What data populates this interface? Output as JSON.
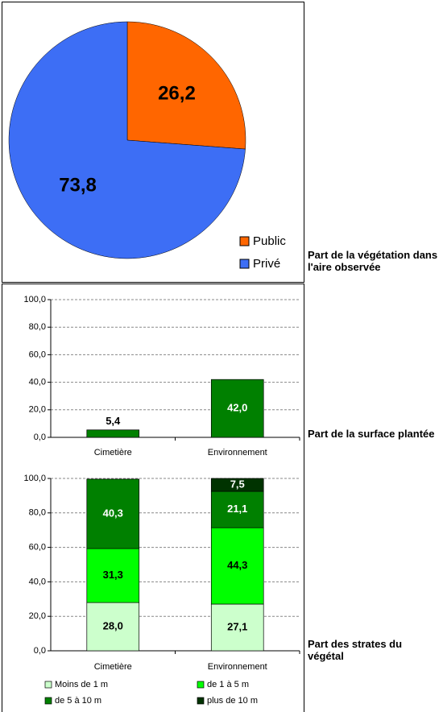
{
  "chart_data": [
    {
      "type": "pie",
      "title": "Part de la végétation dans l'aire observée",
      "categories": [
        "Public",
        "Privé"
      ],
      "values": [
        26.2,
        73.8
      ],
      "value_labels": [
        "26,2",
        "73,8"
      ],
      "colors": [
        "#ff6600",
        "#3d6ef5"
      ],
      "legend": "bottom-right"
    },
    {
      "type": "bar",
      "title": "Part de la surface plantée",
      "categories": [
        "Cimetière",
        "Environnement"
      ],
      "values": [
        5.4,
        42.0
      ],
      "value_labels": [
        "5,4",
        "42,0"
      ],
      "color": "#008000",
      "ylim": [
        0,
        100
      ],
      "yticks": [
        {
          "value": 0,
          "label": "0,0"
        },
        {
          "value": 20,
          "label": "20,0"
        },
        {
          "value": 40,
          "label": "40,0"
        },
        {
          "value": 60,
          "label": "60,0"
        },
        {
          "value": 80,
          "label": "80,0"
        },
        {
          "value": 100,
          "label": "100,0"
        }
      ],
      "grid": true
    },
    {
      "type": "stacked",
      "title": "Part des strates du végétal",
      "categories": [
        "Cimetière",
        "Environnement"
      ],
      "series": [
        {
          "name": "Moins de 1 m",
          "color": "#ccffcc",
          "values": [
            28.0,
            27.1
          ],
          "value_labels": [
            "28,0",
            "27,1"
          ]
        },
        {
          "name": "de 1 à 5 m",
          "color": "#00ff00",
          "values": [
            31.3,
            44.3
          ],
          "value_labels": [
            "31,3",
            "44,3"
          ]
        },
        {
          "name": "de 5 à 10 m",
          "color": "#008000",
          "values": [
            40.3,
            21.1
          ],
          "value_labels": [
            "40,3",
            "21,1"
          ]
        },
        {
          "name": "plus de 10 m",
          "color": "#003300",
          "values": [
            null,
            7.5
          ],
          "value_labels": [
            null,
            "7,5"
          ]
        }
      ],
      "ylim": [
        0,
        100
      ],
      "yticks": [
        {
          "value": 0,
          "label": "0,0"
        },
        {
          "value": 20,
          "label": "20,0"
        },
        {
          "value": 40,
          "label": "40,0"
        },
        {
          "value": 60,
          "label": "60,0"
        },
        {
          "value": 80,
          "label": "80,0"
        },
        {
          "value": 100,
          "label": "100,0"
        }
      ],
      "grid": true,
      "legend": "bottom"
    }
  ]
}
